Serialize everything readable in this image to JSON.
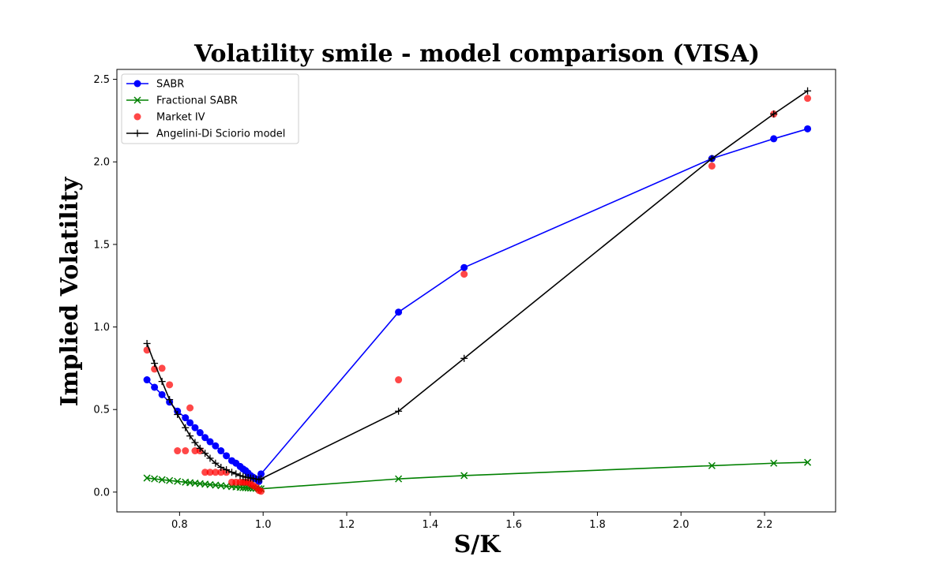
{
  "chart_data": {
    "type": "line",
    "title": "Volatility smile - model comparison (VISA)",
    "xlabel": "S/K",
    "ylabel": "Implied Volatility",
    "xlim": [
      0.65,
      2.37
    ],
    "ylim": [
      -0.12,
      2.56
    ],
    "xticks": [
      0.8,
      1.0,
      1.2,
      1.4,
      1.6,
      1.8,
      2.0,
      2.2
    ],
    "xtick_labels": [
      "0.8",
      "1.0",
      "1.2",
      "1.4",
      "1.6",
      "1.8",
      "2.0",
      "2.2"
    ],
    "yticks": [
      0.0,
      0.5,
      1.0,
      1.5,
      2.0,
      2.5
    ],
    "ytick_labels": [
      "0.0",
      "0.5",
      "1.0",
      "1.5",
      "2.0",
      "2.5"
    ],
    "grid": false,
    "legend_position": "top-left",
    "series": [
      {
        "name": "SABR",
        "color": "#0000ff",
        "marker": "circle",
        "line": true,
        "points": [
          [
            0.722,
            0.68
          ],
          [
            0.74,
            0.635
          ],
          [
            0.758,
            0.59
          ],
          [
            0.776,
            0.545
          ],
          [
            0.795,
            0.49
          ],
          [
            0.814,
            0.45
          ],
          [
            0.825,
            0.42
          ],
          [
            0.837,
            0.39
          ],
          [
            0.849,
            0.36
          ],
          [
            0.861,
            0.33
          ],
          [
            0.873,
            0.305
          ],
          [
            0.886,
            0.28
          ],
          [
            0.899,
            0.25
          ],
          [
            0.912,
            0.22
          ],
          [
            0.925,
            0.19
          ],
          [
            0.935,
            0.175
          ],
          [
            0.945,
            0.155
          ],
          [
            0.952,
            0.14
          ],
          [
            0.958,
            0.13
          ],
          [
            0.964,
            0.115
          ],
          [
            0.97,
            0.1
          ],
          [
            0.976,
            0.09
          ],
          [
            0.983,
            0.08
          ],
          [
            0.99,
            0.065
          ],
          [
            0.995,
            0.11
          ],
          [
            1.324,
            1.09
          ],
          [
            1.481,
            1.36
          ],
          [
            2.074,
            2.02
          ],
          [
            2.222,
            2.14
          ],
          [
            2.303,
            2.2
          ]
        ]
      },
      {
        "name": "Fractional SABR",
        "color": "#008000",
        "marker": "x",
        "line": true,
        "points": [
          [
            0.722,
            0.085
          ],
          [
            0.74,
            0.08
          ],
          [
            0.758,
            0.075
          ],
          [
            0.776,
            0.07
          ],
          [
            0.795,
            0.065
          ],
          [
            0.814,
            0.06
          ],
          [
            0.825,
            0.057
          ],
          [
            0.837,
            0.054
          ],
          [
            0.849,
            0.051
          ],
          [
            0.861,
            0.048
          ],
          [
            0.873,
            0.045
          ],
          [
            0.886,
            0.042
          ],
          [
            0.899,
            0.039
          ],
          [
            0.912,
            0.036
          ],
          [
            0.925,
            0.033
          ],
          [
            0.935,
            0.031
          ],
          [
            0.945,
            0.029
          ],
          [
            0.952,
            0.027
          ],
          [
            0.958,
            0.026
          ],
          [
            0.964,
            0.025
          ],
          [
            0.97,
            0.024
          ],
          [
            0.976,
            0.023
          ],
          [
            0.983,
            0.022
          ],
          [
            0.99,
            0.021
          ],
          [
            0.995,
            0.02
          ],
          [
            1.324,
            0.08
          ],
          [
            1.481,
            0.1
          ],
          [
            2.074,
            0.16
          ],
          [
            2.222,
            0.175
          ],
          [
            2.303,
            0.18
          ]
        ]
      },
      {
        "name": "Market IV",
        "color": "#ff0000",
        "marker": "dot",
        "line": false,
        "points": [
          [
            0.722,
            0.86
          ],
          [
            0.74,
            0.745
          ],
          [
            0.758,
            0.75
          ],
          [
            0.776,
            0.65
          ],
          [
            0.795,
            0.25
          ],
          [
            0.814,
            0.25
          ],
          [
            0.825,
            0.51
          ],
          [
            0.837,
            0.25
          ],
          [
            0.849,
            0.25
          ],
          [
            0.861,
            0.12
          ],
          [
            0.873,
            0.12
          ],
          [
            0.886,
            0.12
          ],
          [
            0.899,
            0.12
          ],
          [
            0.912,
            0.12
          ],
          [
            0.925,
            0.06
          ],
          [
            0.935,
            0.06
          ],
          [
            0.945,
            0.06
          ],
          [
            0.952,
            0.06
          ],
          [
            0.958,
            0.06
          ],
          [
            0.964,
            0.06
          ],
          [
            0.97,
            0.05
          ],
          [
            0.976,
            0.04
          ],
          [
            0.983,
            0.03
          ],
          [
            0.99,
            0.01
          ],
          [
            0.995,
            0.005
          ],
          [
            1.324,
            0.68
          ],
          [
            1.481,
            1.32
          ],
          [
            2.074,
            1.975
          ],
          [
            2.222,
            2.29
          ],
          [
            2.303,
            2.385
          ]
        ]
      },
      {
        "name": "Angelini-Di Sciorio model",
        "color": "#000000",
        "marker": "plus",
        "line": true,
        "points": [
          [
            0.722,
            0.9
          ],
          [
            0.74,
            0.78
          ],
          [
            0.758,
            0.67
          ],
          [
            0.776,
            0.56
          ],
          [
            0.795,
            0.47
          ],
          [
            0.814,
            0.39
          ],
          [
            0.825,
            0.34
          ],
          [
            0.837,
            0.3
          ],
          [
            0.849,
            0.265
          ],
          [
            0.861,
            0.235
          ],
          [
            0.873,
            0.205
          ],
          [
            0.886,
            0.175
          ],
          [
            0.899,
            0.15
          ],
          [
            0.912,
            0.135
          ],
          [
            0.925,
            0.12
          ],
          [
            0.935,
            0.11
          ],
          [
            0.945,
            0.1
          ],
          [
            0.952,
            0.095
          ],
          [
            0.958,
            0.09
          ],
          [
            0.964,
            0.088
          ],
          [
            0.97,
            0.085
          ],
          [
            0.976,
            0.082
          ],
          [
            0.983,
            0.08
          ],
          [
            0.99,
            0.075
          ],
          [
            0.995,
            0.08
          ],
          [
            1.324,
            0.49
          ],
          [
            1.481,
            0.81
          ],
          [
            2.074,
            2.02
          ],
          [
            2.222,
            2.29
          ],
          [
            2.303,
            2.43
          ]
        ]
      }
    ]
  }
}
